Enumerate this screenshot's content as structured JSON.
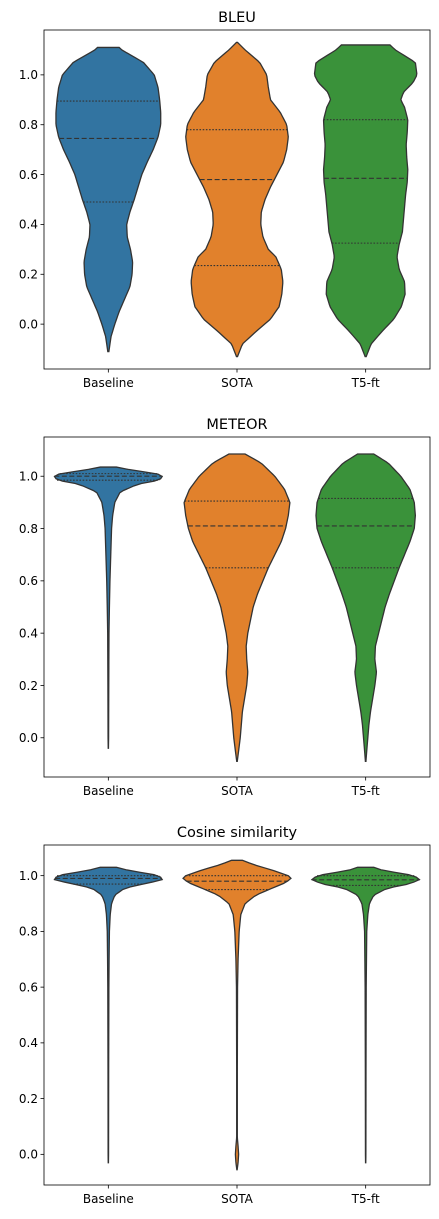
{
  "chart_data": [
    {
      "type": "violin",
      "title": "BLEU",
      "categories": [
        "Baseline",
        "SOTA",
        "T5-ft"
      ],
      "yticks": [
        0.0,
        0.2,
        0.4,
        0.6,
        0.8,
        1.0
      ],
      "ylim": [
        -0.18,
        1.18
      ],
      "grid": false,
      "colors": [
        "#3274a1",
        "#e1812c",
        "#3a923a"
      ],
      "series": [
        {
          "category": "Baseline",
          "extent": [
            -0.11,
            1.11
          ],
          "quartiles": [
            0.49,
            0.745,
            0.895
          ],
          "density": [
            [
              -0.11,
              0.01
            ],
            [
              -0.05,
              0.05
            ],
            [
              0.0,
              0.12
            ],
            [
              0.05,
              0.2
            ],
            [
              0.1,
              0.3
            ],
            [
              0.15,
              0.4
            ],
            [
              0.2,
              0.44
            ],
            [
              0.25,
              0.45
            ],
            [
              0.3,
              0.41
            ],
            [
              0.35,
              0.35
            ],
            [
              0.4,
              0.34
            ],
            [
              0.45,
              0.4
            ],
            [
              0.5,
              0.48
            ],
            [
              0.55,
              0.55
            ],
            [
              0.6,
              0.62
            ],
            [
              0.65,
              0.72
            ],
            [
              0.7,
              0.83
            ],
            [
              0.75,
              0.92
            ],
            [
              0.8,
              0.97
            ],
            [
              0.85,
              0.97
            ],
            [
              0.9,
              0.95
            ],
            [
              0.95,
              0.92
            ],
            [
              1.0,
              0.85
            ],
            [
              1.05,
              0.65
            ],
            [
              1.1,
              0.25
            ],
            [
              1.11,
              0.2
            ]
          ]
        },
        {
          "category": "SOTA",
          "extent": [
            -0.13,
            1.13
          ],
          "quartiles": [
            0.235,
            0.58,
            0.78
          ],
          "density": [
            [
              -0.13,
              0.01
            ],
            [
              -0.08,
              0.1
            ],
            [
              -0.03,
              0.35
            ],
            [
              0.02,
              0.62
            ],
            [
              0.07,
              0.78
            ],
            [
              0.12,
              0.83
            ],
            [
              0.17,
              0.85
            ],
            [
              0.22,
              0.82
            ],
            [
              0.27,
              0.72
            ],
            [
              0.3,
              0.58
            ],
            [
              0.35,
              0.48
            ],
            [
              0.4,
              0.44
            ],
            [
              0.45,
              0.45
            ],
            [
              0.5,
              0.52
            ],
            [
              0.55,
              0.62
            ],
            [
              0.6,
              0.74
            ],
            [
              0.65,
              0.86
            ],
            [
              0.7,
              0.92
            ],
            [
              0.75,
              0.95
            ],
            [
              0.8,
              0.92
            ],
            [
              0.85,
              0.8
            ],
            [
              0.9,
              0.62
            ],
            [
              0.95,
              0.58
            ],
            [
              1.0,
              0.55
            ],
            [
              1.05,
              0.42
            ],
            [
              1.1,
              0.15
            ],
            [
              1.13,
              0.01
            ]
          ]
        },
        {
          "category": "T5-ft",
          "extent": [
            -0.13,
            1.12
          ],
          "quartiles": [
            0.325,
            0.585,
            0.82
          ],
          "density": [
            [
              -0.13,
              0.01
            ],
            [
              -0.08,
              0.1
            ],
            [
              -0.03,
              0.3
            ],
            [
              0.02,
              0.52
            ],
            [
              0.07,
              0.66
            ],
            [
              0.12,
              0.73
            ],
            [
              0.17,
              0.72
            ],
            [
              0.22,
              0.62
            ],
            [
              0.27,
              0.58
            ],
            [
              0.32,
              0.62
            ],
            [
              0.37,
              0.68
            ],
            [
              0.42,
              0.7
            ],
            [
              0.47,
              0.72
            ],
            [
              0.52,
              0.74
            ],
            [
              0.57,
              0.77
            ],
            [
              0.62,
              0.78
            ],
            [
              0.67,
              0.76
            ],
            [
              0.72,
              0.75
            ],
            [
              0.77,
              0.77
            ],
            [
              0.82,
              0.78
            ],
            [
              0.87,
              0.72
            ],
            [
              0.9,
              0.65
            ],
            [
              0.93,
              0.7
            ],
            [
              0.97,
              0.88
            ],
            [
              1.0,
              0.95
            ],
            [
              1.05,
              0.92
            ],
            [
              1.1,
              0.55
            ],
            [
              1.12,
              0.45
            ]
          ]
        }
      ]
    },
    {
      "type": "violin",
      "title": "METEOR",
      "categories": [
        "Baseline",
        "SOTA",
        "T5-ft"
      ],
      "yticks": [
        0.0,
        0.2,
        0.4,
        0.6,
        0.8,
        1.0
      ],
      "ylim": [
        -0.15,
        1.15
      ],
      "grid": false,
      "colors": [
        "#3274a1",
        "#e1812c",
        "#3a923a"
      ],
      "series": [
        {
          "category": "Baseline",
          "extent": [
            -0.04,
            1.035
          ],
          "quartiles": [
            0.985,
            1.0,
            1.01
          ],
          "density": [
            [
              -0.04,
              0.002
            ],
            [
              0.0,
              0.005
            ],
            [
              0.2,
              0.008
            ],
            [
              0.4,
              0.012
            ],
            [
              0.5,
              0.02
            ],
            [
              0.6,
              0.03
            ],
            [
              0.7,
              0.045
            ],
            [
              0.8,
              0.06
            ],
            [
              0.85,
              0.08
            ],
            [
              0.9,
              0.12
            ],
            [
              0.94,
              0.22
            ],
            [
              0.97,
              0.55
            ],
            [
              0.985,
              0.95
            ],
            [
              1.0,
              1.0
            ],
            [
              1.01,
              0.9
            ],
            [
              1.02,
              0.55
            ],
            [
              1.03,
              0.25
            ],
            [
              1.035,
              0.15
            ]
          ]
        },
        {
          "category": "SOTA",
          "extent": [
            -0.09,
            1.085
          ],
          "quartiles": [
            0.65,
            0.81,
            0.905
          ],
          "density": [
            [
              -0.09,
              0.005
            ],
            [
              -0.05,
              0.03
            ],
            [
              0.0,
              0.06
            ],
            [
              0.05,
              0.08
            ],
            [
              0.1,
              0.1
            ],
            [
              0.15,
              0.14
            ],
            [
              0.2,
              0.18
            ],
            [
              0.25,
              0.2
            ],
            [
              0.3,
              0.18
            ],
            [
              0.35,
              0.17
            ],
            [
              0.4,
              0.2
            ],
            [
              0.45,
              0.25
            ],
            [
              0.5,
              0.3
            ],
            [
              0.55,
              0.38
            ],
            [
              0.6,
              0.48
            ],
            [
              0.65,
              0.58
            ],
            [
              0.7,
              0.7
            ],
            [
              0.75,
              0.82
            ],
            [
              0.8,
              0.9
            ],
            [
              0.85,
              0.95
            ],
            [
              0.9,
              0.98
            ],
            [
              0.95,
              0.88
            ],
            [
              1.0,
              0.7
            ],
            [
              1.05,
              0.45
            ],
            [
              1.085,
              0.15
            ]
          ]
        },
        {
          "category": "T5-ft",
          "extent": [
            -0.09,
            1.085
          ],
          "quartiles": [
            0.65,
            0.81,
            0.915
          ],
          "density": [
            [
              -0.09,
              0.005
            ],
            [
              -0.05,
              0.02
            ],
            [
              0.0,
              0.04
            ],
            [
              0.05,
              0.06
            ],
            [
              0.1,
              0.09
            ],
            [
              0.15,
              0.13
            ],
            [
              0.2,
              0.17
            ],
            [
              0.25,
              0.2
            ],
            [
              0.3,
              0.17
            ],
            [
              0.35,
              0.18
            ],
            [
              0.4,
              0.24
            ],
            [
              0.45,
              0.3
            ],
            [
              0.5,
              0.36
            ],
            [
              0.55,
              0.44
            ],
            [
              0.6,
              0.53
            ],
            [
              0.65,
              0.62
            ],
            [
              0.7,
              0.72
            ],
            [
              0.75,
              0.82
            ],
            [
              0.8,
              0.9
            ],
            [
              0.85,
              0.92
            ],
            [
              0.9,
              0.9
            ],
            [
              0.95,
              0.82
            ],
            [
              1.0,
              0.65
            ],
            [
              1.05,
              0.42
            ],
            [
              1.085,
              0.15
            ]
          ]
        }
      ]
    },
    {
      "type": "violin",
      "title": "Cosine similarity",
      "categories": [
        "Baseline",
        "SOTA",
        "T5-ft"
      ],
      "yticks": [
        0.0,
        0.2,
        0.4,
        0.6,
        0.8,
        1.0
      ],
      "ylim": [
        -0.11,
        1.11
      ],
      "grid": false,
      "colors": [
        "#3274a1",
        "#e1812c",
        "#3a923a"
      ],
      "series": [
        {
          "category": "Baseline",
          "extent": [
            -0.03,
            1.03
          ],
          "quartiles": [
            0.97,
            0.99,
            1.0
          ],
          "density": [
            [
              -0.03,
              0.002
            ],
            [
              0.0,
              0.004
            ],
            [
              0.3,
              0.006
            ],
            [
              0.6,
              0.01
            ],
            [
              0.7,
              0.014
            ],
            [
              0.8,
              0.02
            ],
            [
              0.86,
              0.035
            ],
            [
              0.9,
              0.06
            ],
            [
              0.93,
              0.12
            ],
            [
              0.955,
              0.3
            ],
            [
              0.97,
              0.65
            ],
            [
              0.985,
              1.0
            ],
            [
              1.0,
              0.95
            ],
            [
              1.01,
              0.65
            ],
            [
              1.02,
              0.35
            ],
            [
              1.03,
              0.15
            ]
          ]
        },
        {
          "category": "SOTA",
          "extent": [
            -0.055,
            1.055
          ],
          "quartiles": [
            0.95,
            0.98,
            1.0
          ],
          "density": [
            [
              -0.055,
              0.003
            ],
            [
              -0.03,
              0.02
            ],
            [
              0.0,
              0.03
            ],
            [
              0.03,
              0.02
            ],
            [
              0.06,
              0.006
            ],
            [
              0.3,
              0.006
            ],
            [
              0.6,
              0.01
            ],
            [
              0.7,
              0.02
            ],
            [
              0.8,
              0.04
            ],
            [
              0.86,
              0.07
            ],
            [
              0.9,
              0.15
            ],
            [
              0.93,
              0.35
            ],
            [
              0.955,
              0.65
            ],
            [
              0.975,
              0.9
            ],
            [
              0.99,
              1.0
            ],
            [
              1.0,
              0.95
            ],
            [
              1.02,
              0.65
            ],
            [
              1.04,
              0.3
            ],
            [
              1.055,
              0.1
            ]
          ]
        },
        {
          "category": "T5-ft",
          "extent": [
            -0.03,
            1.03
          ],
          "quartiles": [
            0.965,
            0.985,
            1.0
          ],
          "density": [
            [
              -0.03,
              0.002
            ],
            [
              0.0,
              0.004
            ],
            [
              0.3,
              0.006
            ],
            [
              0.6,
              0.01
            ],
            [
              0.7,
              0.015
            ],
            [
              0.8,
              0.02
            ],
            [
              0.86,
              0.04
            ],
            [
              0.9,
              0.07
            ],
            [
              0.93,
              0.15
            ],
            [
              0.955,
              0.4
            ],
            [
              0.97,
              0.8
            ],
            [
              0.985,
              1.0
            ],
            [
              1.0,
              0.9
            ],
            [
              1.01,
              0.6
            ],
            [
              1.02,
              0.3
            ],
            [
              1.03,
              0.15
            ]
          ]
        }
      ]
    }
  ]
}
